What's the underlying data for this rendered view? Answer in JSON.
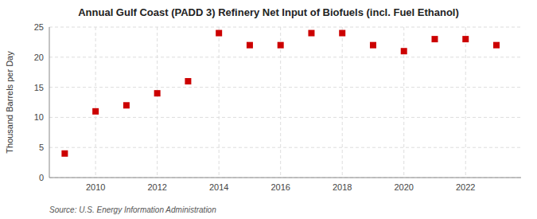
{
  "chart_data": {
    "type": "scatter",
    "title": "Annual Gulf Coast (PADD 3) Refinery Net Input of Biofuels (incl. Fuel Ethanol)",
    "y_label": "Thousand Barrels per Day",
    "annotations": [
      "Source: U.S. Energy Information Administration"
    ],
    "x": [
      2009,
      2010,
      2011,
      2012,
      2013,
      2014,
      2015,
      2016,
      2017,
      2018,
      2019,
      2020,
      2021,
      2022,
      2023
    ],
    "values": [
      4.0,
      11.0,
      12.0,
      14.0,
      16.0,
      24.0,
      22.0,
      22.0,
      24.0,
      24.0,
      22.0,
      21.0,
      23.0,
      23.0,
      22.0
    ],
    "color": "#cc0000",
    "marker": "square",
    "xlim": [
      2008.5,
      2023.8
    ],
    "ylim": [
      0,
      25
    ],
    "xticks": [
      2010,
      2012,
      2014,
      2016,
      2018,
      2020,
      2022
    ],
    "yticks": [
      0,
      5,
      10,
      15,
      20,
      25
    ],
    "grid": true
  }
}
